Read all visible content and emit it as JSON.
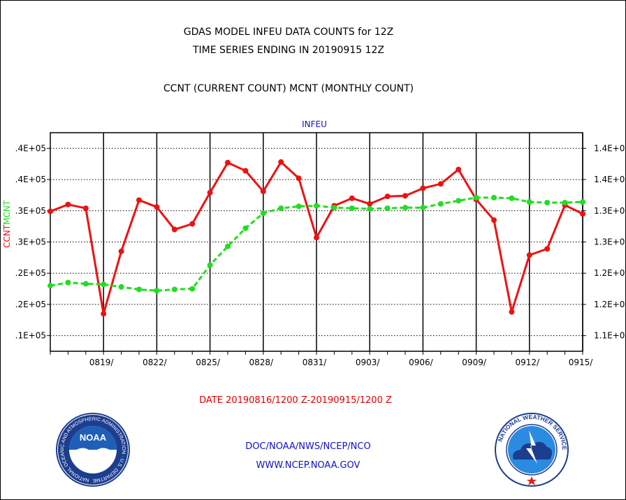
{
  "header": {
    "title_line1": "GDAS MODEL INFEU DATA COUNTS for 12Z",
    "title_line2": "TIME SERIES ENDING IN 20190915 12Z",
    "title_line3": "CCNT (CURRENT COUNT) MCNT (MONTHLY COUNT)",
    "station": "INFEU"
  },
  "footer": {
    "date_range": "DATE 20190816/1200 Z-20190915/1200 Z",
    "credit_line1": "DOC/NOAA/NWS/NCEP/NCO",
    "credit_line2": "WWW.NCEP.NOAA.GOV",
    "noaa_logo_text": "NOAA",
    "noaa_ring_text": "NATIONAL OCEANIC AND ATMOSPHERIC ADMINISTRATION · U.S. DEPARTMENT OF COMMERCE ·",
    "nws_ring_text": "NATIONAL WEATHER SERVICE"
  },
  "chart_data": {
    "type": "line",
    "title": "GDAS MODEL INFEU DATA COUNTS for 12Z",
    "xlabel": "DATE 20190816/1200 Z-20190915/1200 Z",
    "ylabel_parts": [
      "CCNT",
      "MCNT"
    ],
    "x_tick_labels": [
      "0819/",
      "0822/",
      "0825/",
      "0828/",
      "0831/",
      "0903/",
      "0906/",
      "0909/",
      "0912/",
      "0915/"
    ],
    "y_tick_labels_left": [
      ".4E+05",
      ".4E+05",
      ".3E+05",
      ".3E+05",
      ".2E+05",
      ".2E+05",
      ".1E+05"
    ],
    "y_tick_labels_right": [
      "1.4E+0",
      "1.4E+0",
      "1.3E+0",
      "1.3E+0",
      "1.2E+0",
      "1.2E+0",
      "1.1E+0"
    ],
    "ylim": [
      10000,
      45000
    ],
    "grid": true,
    "colors": {
      "ccnt": "#ee1111",
      "mcnt": "#22dd22",
      "credit": "#1010c8"
    },
    "x_days": [
      "0816",
      "0817",
      "0818",
      "0819",
      "0820",
      "0821",
      "0822",
      "0823",
      "0824",
      "0825",
      "0826",
      "0827",
      "0828",
      "0829",
      "0830",
      "0831",
      "0901",
      "0902",
      "0903",
      "0904",
      "0905",
      "0906",
      "0907",
      "0908",
      "0909",
      "0910",
      "0911",
      "0912",
      "0913",
      "0914",
      "0915"
    ],
    "series": [
      {
        "name": "CCNT",
        "color": "#ee1111",
        "values": [
          32400,
          33500,
          32900,
          16000,
          26000,
          34200,
          33100,
          29500,
          30400,
          35400,
          40200,
          38900,
          35600,
          40300,
          37700,
          28200,
          33300,
          34500,
          33600,
          34800,
          34900,
          36100,
          36800,
          39100,
          34300,
          31000,
          16300,
          25400,
          26400,
          33400,
          32000
        ]
      },
      {
        "name": "MCNT",
        "color": "#22dd22",
        "values": [
          20500,
          21000,
          20800,
          20700,
          20300,
          19900,
          19700,
          19900,
          20000,
          23800,
          26800,
          29700,
          32100,
          32900,
          33200,
          33300,
          33000,
          32900,
          32800,
          32900,
          33000,
          33000,
          33600,
          34100,
          34600,
          34600,
          34500,
          33900,
          33800,
          33800,
          33900
        ]
      }
    ]
  }
}
